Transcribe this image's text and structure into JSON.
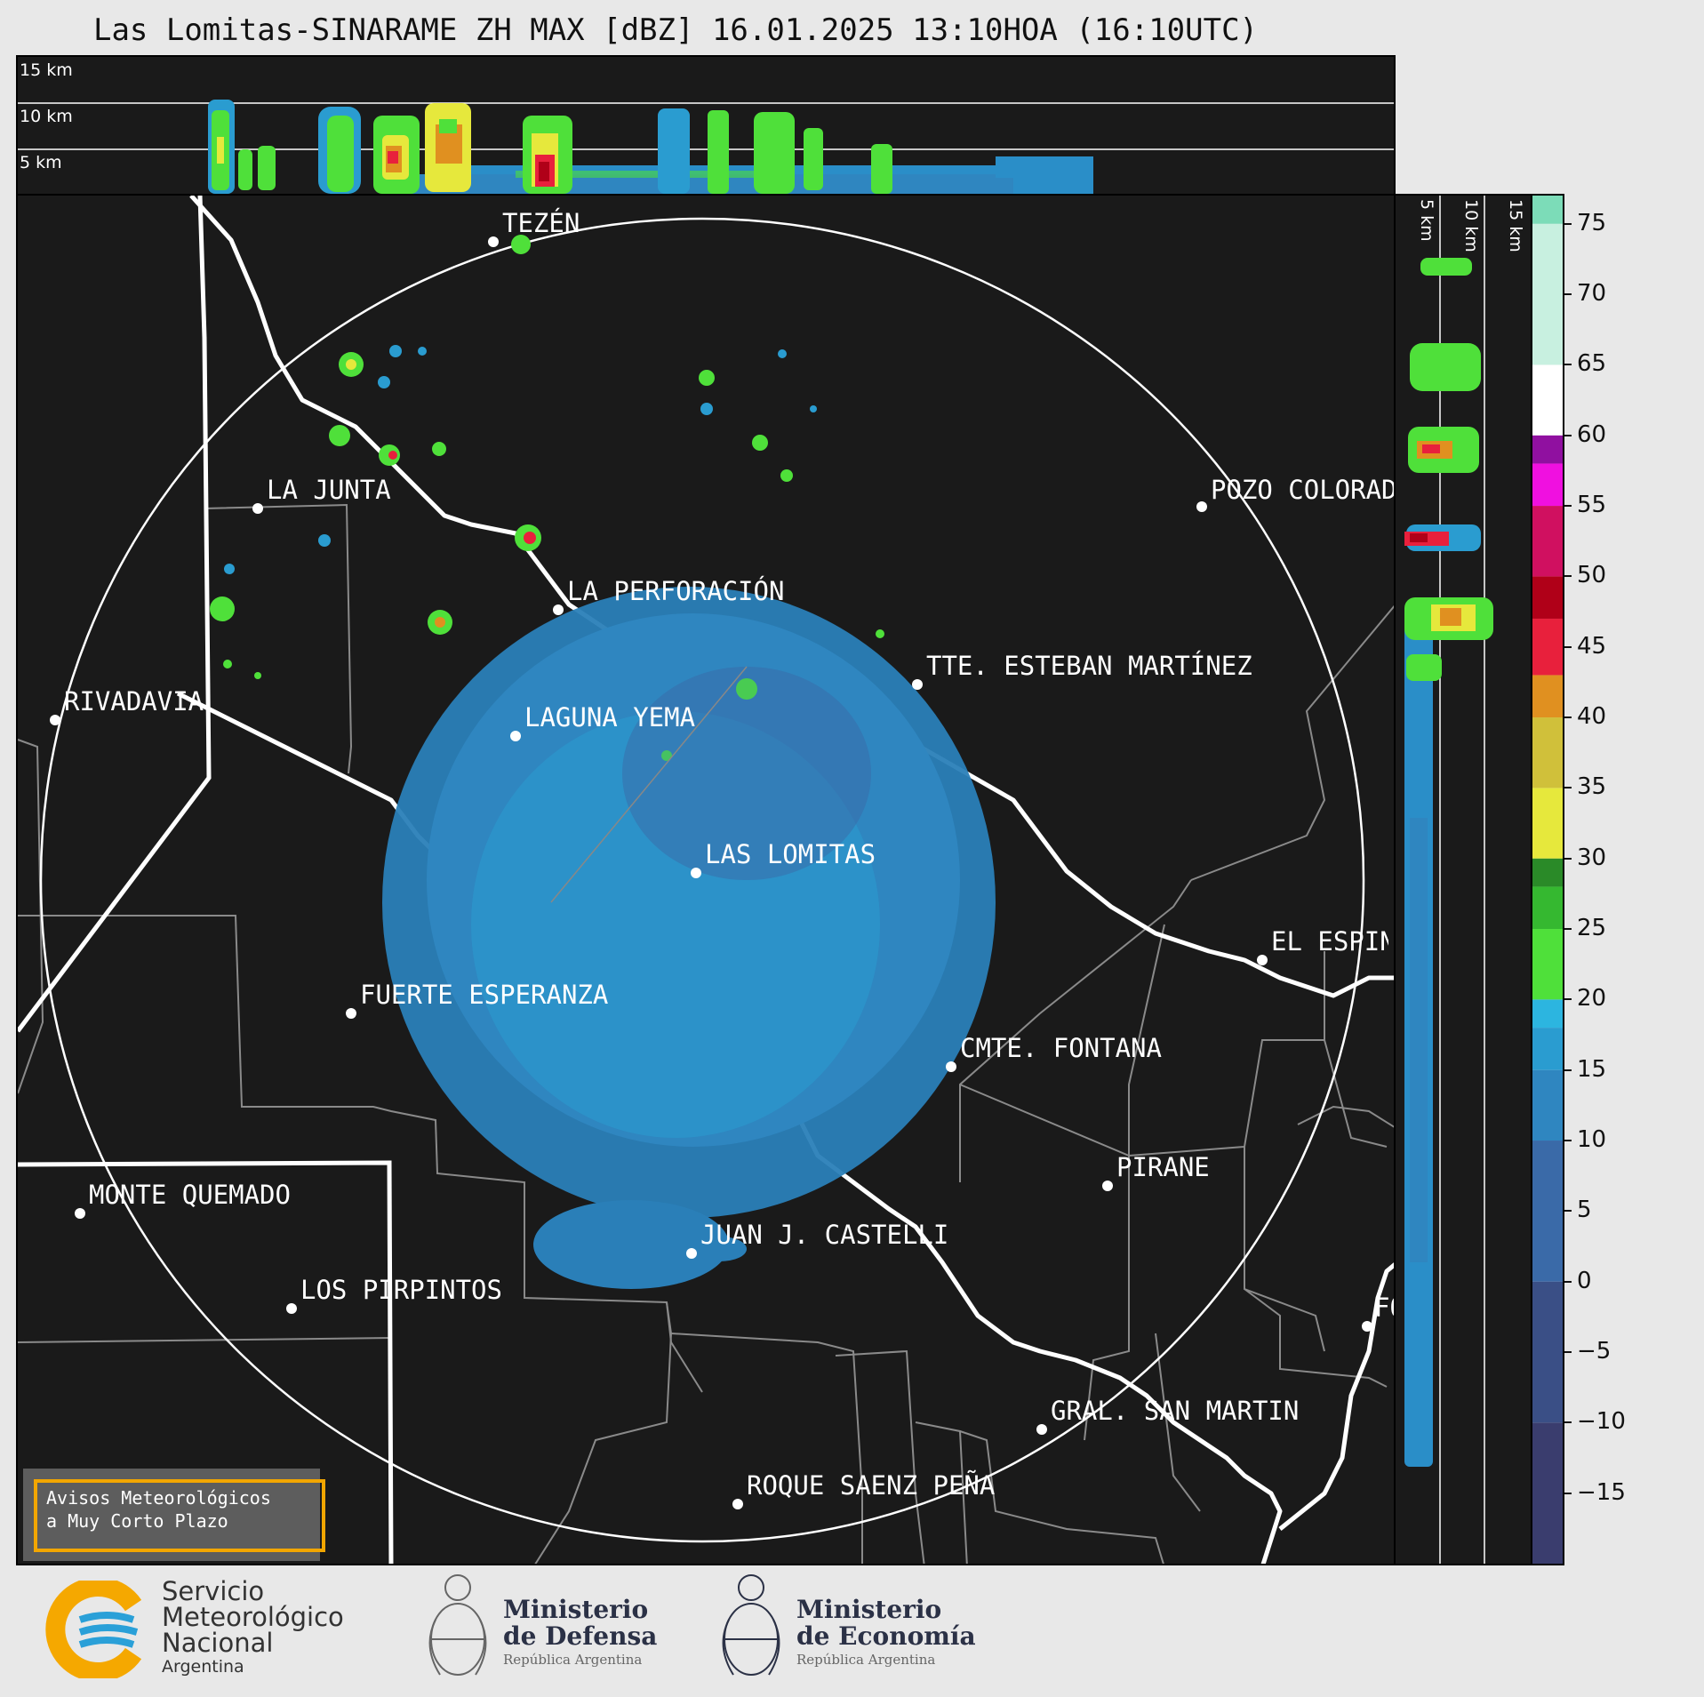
{
  "title": "Las Lomitas-SINARAME ZH MAX [dBZ] 16.01.2025 13:10HOA (16:10UTC)",
  "top_altitudes": [
    "15 km",
    "10 km",
    "5 km"
  ],
  "side_altitudes": [
    "5 km",
    "10 km",
    "15 km"
  ],
  "places": [
    {
      "name": "TEZÉN"
    },
    {
      "name": "LA JUNTA"
    },
    {
      "name": "POZO COLORADO"
    },
    {
      "name": "LA PERFORACIÓN"
    },
    {
      "name": "TTE. ESTEBAN MARTÍNEZ"
    },
    {
      "name": "RIVADAVIA"
    },
    {
      "name": "LAGUNA YEMA"
    },
    {
      "name": "LAS LOMITAS"
    },
    {
      "name": "EL ESPINILLO"
    },
    {
      "name": "FUERTE ESPERANZA"
    },
    {
      "name": "CMTE. FONTANA"
    },
    {
      "name": "PIRANE"
    },
    {
      "name": "MONTE QUEMADO"
    },
    {
      "name": "JUAN J. CASTELLI"
    },
    {
      "name": "LOS PIRPINTOS"
    },
    {
      "name": "FORMOSA"
    },
    {
      "name": "GRAL. SAN MARTIN"
    },
    {
      "name": "ROQUE SAENZ PEÑA"
    }
  ],
  "colorbar": {
    "unit": "dBZ",
    "min": -20,
    "max": 77,
    "ticks": [
      "75",
      "70",
      "65",
      "60",
      "55",
      "50",
      "45",
      "40",
      "35",
      "30",
      "25",
      "20",
      "15",
      "10",
      "5",
      "0",
      "−5",
      "−10",
      "−15"
    ],
    "colors": {
      "-20": "#3a3d6e",
      "-10": "#3a4f86",
      "0": "#3a6aa8",
      "10": "#2f86c0",
      "15": "#2a9cd0",
      "18": "#2cb5e0",
      "20": "#4fe03a",
      "25": "#35b830",
      "28": "#2a8a28",
      "30": "#e6e83c",
      "35": "#d0c03a",
      "40": "#e09020",
      "43": "#e8203c",
      "47": "#b00018",
      "50": "#d01060",
      "55": "#f010e0",
      "58": "#9010a0",
      "60": "#ffffff",
      "65": "#c8f0e0",
      "75": "#7cdcb8"
    }
  },
  "notice": [
    "Avisos Meteorológicos",
    "a Muy Corto Plazo"
  ],
  "logos": {
    "smn": [
      "Servicio",
      "Meteorológico",
      "Nacional",
      "Argentina"
    ],
    "defensa": [
      "Ministerio",
      "de Defensa",
      "República Argentina"
    ],
    "economia": [
      "Ministerio",
      "de Economía",
      "República Argentina"
    ]
  }
}
